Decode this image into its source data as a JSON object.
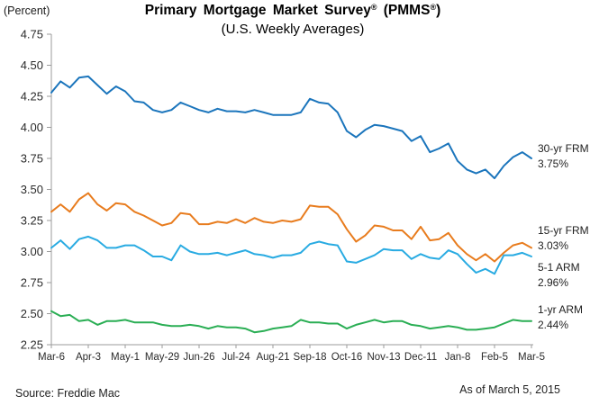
{
  "chart": {
    "percent_label": "(Percent)",
    "title_main": "Primary Mortgage Market Survey",
    "title_reg": "®",
    "title_mid": " (PMMS",
    "title_end": ")",
    "subtitle": "(U.S. Weekly Averages)",
    "source": "Source: Freddie Mac",
    "as_of": "As of March 5, 2015"
  },
  "chart_data": {
    "type": "line",
    "title": "Primary Mortgage Market Survey® (PMMS®)",
    "subtitle": "(U.S. Weekly Averages)",
    "ylabel": "(Percent)",
    "xlabel": "",
    "grid": false,
    "legend_position": "right-of-line-ends",
    "ylim": [
      2.25,
      4.75
    ],
    "ytick_labels": [
      "4.75",
      "4.50",
      "4.25",
      "4.00",
      "3.75",
      "3.50",
      "3.25",
      "3.00",
      "2.75",
      "2.50",
      "2.25"
    ],
    "x_count": 53,
    "x_description": "weekly observations, Mar-6-2014 through Mar-5-2015",
    "xtick_weeks": [
      0,
      4,
      8,
      12,
      16,
      20,
      24,
      28,
      32,
      36,
      40,
      44,
      48,
      52
    ],
    "xtick_labels": [
      "Mar-6",
      "Apr-3",
      "May-1",
      "May-29",
      "Jun-26",
      "Jul-24",
      "Aug-21",
      "Sep-18",
      "Oct-16",
      "Nov-13",
      "Dec-11",
      "Jan-8",
      "Feb-5",
      "Mar-5"
    ],
    "axis_color": "#9b9b9b",
    "label_color": "#2b2b2b",
    "series": [
      {
        "id": "30yr-frm",
        "name": "30-yr FRM",
        "end_label": "3.75%",
        "color": "#1b75bc",
        "values": [
          4.28,
          4.37,
          4.32,
          4.4,
          4.41,
          4.34,
          4.27,
          4.33,
          4.29,
          4.21,
          4.2,
          4.14,
          4.12,
          4.14,
          4.2,
          4.17,
          4.14,
          4.12,
          4.15,
          4.13,
          4.13,
          4.12,
          4.14,
          4.12,
          4.1,
          4.1,
          4.1,
          4.12,
          4.23,
          4.2,
          4.19,
          4.12,
          3.97,
          3.92,
          3.98,
          4.02,
          4.01,
          3.99,
          3.97,
          3.89,
          3.93,
          3.8,
          3.83,
          3.87,
          3.73,
          3.66,
          3.63,
          3.66,
          3.59,
          3.69,
          3.76,
          3.8,
          3.75
        ]
      },
      {
        "id": "15yr-frm",
        "name": "15-yr FRM",
        "end_label": "3.03%",
        "color": "#e87c1e",
        "values": [
          3.32,
          3.38,
          3.32,
          3.42,
          3.47,
          3.38,
          3.33,
          3.39,
          3.38,
          3.32,
          3.29,
          3.25,
          3.21,
          3.23,
          3.31,
          3.3,
          3.22,
          3.22,
          3.24,
          3.23,
          3.26,
          3.23,
          3.27,
          3.24,
          3.23,
          3.25,
          3.24,
          3.26,
          3.37,
          3.36,
          3.36,
          3.3,
          3.18,
          3.08,
          3.13,
          3.21,
          3.2,
          3.17,
          3.17,
          3.1,
          3.2,
          3.09,
          3.1,
          3.15,
          3.05,
          2.98,
          2.93,
          2.98,
          2.92,
          2.99,
          3.05,
          3.07,
          3.03
        ]
      },
      {
        "id": "5-1-arm",
        "name": "5-1 ARM",
        "end_label": "2.96%",
        "color": "#29abe2",
        "values": [
          3.03,
          3.09,
          3.02,
          3.1,
          3.12,
          3.09,
          3.03,
          3.03,
          3.05,
          3.05,
          3.01,
          2.96,
          2.96,
          2.93,
          3.05,
          3.0,
          2.98,
          2.98,
          2.99,
          2.97,
          2.99,
          3.01,
          2.98,
          2.97,
          2.95,
          2.97,
          2.97,
          2.99,
          3.06,
          3.08,
          3.06,
          3.05,
          2.92,
          2.91,
          2.94,
          2.97,
          3.02,
          3.01,
          3.01,
          2.94,
          2.98,
          2.95,
          2.94,
          3.01,
          2.98,
          2.9,
          2.83,
          2.86,
          2.82,
          2.97,
          2.97,
          2.99,
          2.96
        ]
      },
      {
        "id": "1yr-arm",
        "name": "1-yr ARM",
        "end_label": "2.44%",
        "color": "#2aae54",
        "values": [
          2.52,
          2.48,
          2.49,
          2.44,
          2.45,
          2.41,
          2.44,
          2.44,
          2.45,
          2.43,
          2.43,
          2.43,
          2.41,
          2.4,
          2.4,
          2.41,
          2.4,
          2.38,
          2.4,
          2.39,
          2.39,
          2.38,
          2.35,
          2.36,
          2.38,
          2.39,
          2.4,
          2.45,
          2.43,
          2.43,
          2.42,
          2.42,
          2.38,
          2.41,
          2.43,
          2.45,
          2.43,
          2.44,
          2.44,
          2.41,
          2.4,
          2.38,
          2.39,
          2.4,
          2.39,
          2.37,
          2.37,
          2.38,
          2.39,
          2.42,
          2.45,
          2.44,
          2.44
        ]
      }
    ]
  }
}
